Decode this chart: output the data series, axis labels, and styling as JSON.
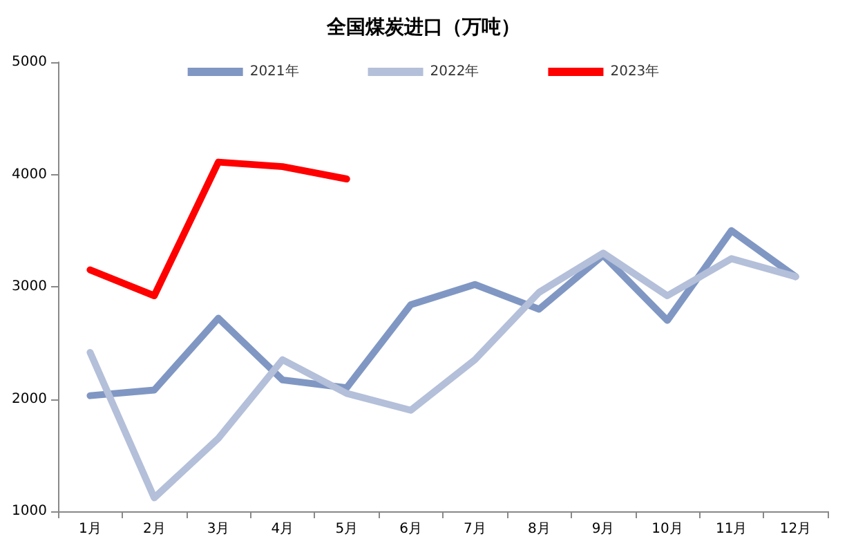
{
  "chart_data": {
    "type": "line",
    "title": "全国煤炭进口（万吨）",
    "categories": [
      "1月",
      "2月",
      "3月",
      "4月",
      "5月",
      "6月",
      "7月",
      "8月",
      "9月",
      "10月",
      "11月",
      "12月"
    ],
    "series": [
      {
        "name": "2021年",
        "color": "#8097c3",
        "values": [
          2030,
          2080,
          2720,
          2170,
          2100,
          2840,
          3020,
          2800,
          3280,
          2700,
          3500,
          3090
        ]
      },
      {
        "name": "2022年",
        "color": "#b4bfd9",
        "values": [
          2415,
          1120,
          1650,
          2350,
          2050,
          1900,
          2350,
          2950,
          3300,
          2920,
          3250,
          3090
        ]
      },
      {
        "name": "2023年",
        "color": "#ff0000",
        "values": [
          3150,
          2920,
          4110,
          4070,
          3960,
          null,
          null,
          null,
          null,
          null,
          null,
          null
        ]
      }
    ],
    "ylim": [
      1000,
      5000
    ],
    "yticks": [
      1000,
      2000,
      3000,
      4000,
      5000
    ],
    "grid": false,
    "legend": "top",
    "marker": "none",
    "line_style": "solid"
  }
}
